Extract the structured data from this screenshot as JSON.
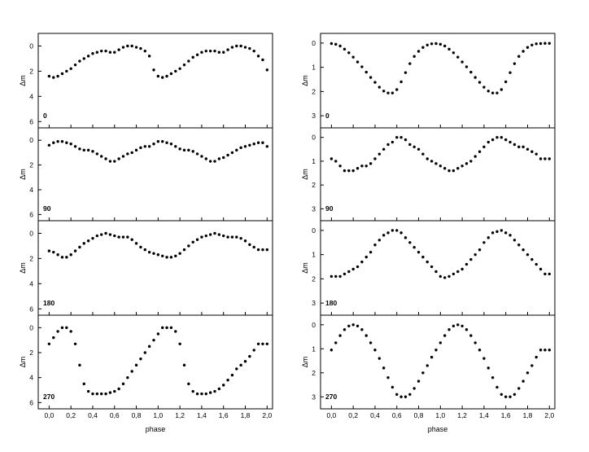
{
  "figure": {
    "xlabel": "phase",
    "ylabel": "Δm"
  },
  "chart_data": [
    {
      "type": "scatter",
      "column": "left",
      "label": "0",
      "xlim": [
        -0.1,
        2.05
      ],
      "ylim": [
        6.5,
        -1.0
      ],
      "yticks": [
        0,
        2,
        4,
        6
      ],
      "xticks": [
        0.0,
        0.2,
        0.4,
        0.6,
        0.8,
        1.0,
        1.2,
        1.4,
        1.6,
        1.8,
        2.0
      ],
      "xtick_labels": [
        "0,0",
        "0,2",
        "0,4",
        "0,6",
        "0,8",
        "1,0",
        "1,2",
        "1,4",
        "1,6",
        "1,8",
        "2,0"
      ],
      "x": [
        0.0,
        0.04,
        0.08,
        0.12,
        0.16,
        0.2,
        0.24,
        0.28,
        0.32,
        0.36,
        0.4,
        0.44,
        0.48,
        0.52,
        0.56,
        0.6,
        0.64,
        0.68,
        0.72,
        0.76,
        0.8,
        0.84,
        0.88,
        0.92,
        0.96,
        1.0,
        1.04,
        1.08,
        1.12,
        1.16,
        1.2,
        1.24,
        1.28,
        1.32,
        1.36,
        1.4,
        1.44,
        1.48,
        1.52,
        1.56,
        1.6,
        1.64,
        1.68,
        1.72,
        1.76,
        1.8,
        1.84,
        1.88,
        1.92,
        1.96,
        2.0
      ],
      "y": [
        2.4,
        2.5,
        2.4,
        2.2,
        2.0,
        1.8,
        1.5,
        1.2,
        1.0,
        0.8,
        0.6,
        0.5,
        0.4,
        0.4,
        0.5,
        0.5,
        0.3,
        0.1,
        0.0,
        0.0,
        0.1,
        0.2,
        0.4,
        0.8,
        1.9,
        2.4,
        2.5,
        2.4,
        2.2,
        2.0,
        1.8,
        1.5,
        1.2,
        0.9,
        0.7,
        0.5,
        0.4,
        0.4,
        0.4,
        0.5,
        0.5,
        0.3,
        0.1,
        0.0,
        0.0,
        0.1,
        0.2,
        0.4,
        0.8,
        1.1,
        1.9
      ]
    },
    {
      "type": "scatter",
      "column": "left",
      "label": "90",
      "xlim": [
        -0.1,
        2.05
      ],
      "ylim": [
        6.5,
        -1.0
      ],
      "yticks": [
        0,
        2,
        4,
        6
      ],
      "xticks": [
        0.0,
        0.2,
        0.4,
        0.6,
        0.8,
        1.0,
        1.2,
        1.4,
        1.6,
        1.8,
        2.0
      ],
      "xtick_labels": [
        "0,0",
        "0,2",
        "0,4",
        "0,6",
        "0,8",
        "1,0",
        "1,2",
        "1,4",
        "1,6",
        "1,8",
        "2,0"
      ],
      "x": [
        0.0,
        0.04,
        0.08,
        0.12,
        0.16,
        0.2,
        0.24,
        0.28,
        0.32,
        0.36,
        0.4,
        0.44,
        0.48,
        0.52,
        0.56,
        0.6,
        0.64,
        0.68,
        0.72,
        0.76,
        0.8,
        0.84,
        0.88,
        0.92,
        0.96,
        1.0,
        1.04,
        1.08,
        1.12,
        1.16,
        1.2,
        1.24,
        1.28,
        1.32,
        1.36,
        1.4,
        1.44,
        1.48,
        1.52,
        1.56,
        1.6,
        1.64,
        1.68,
        1.72,
        1.76,
        1.8,
        1.84,
        1.88,
        1.92,
        1.96,
        2.0
      ],
      "y": [
        0.4,
        0.2,
        0.1,
        0.1,
        0.2,
        0.3,
        0.5,
        0.7,
        0.8,
        0.8,
        0.9,
        1.1,
        1.3,
        1.5,
        1.7,
        1.7,
        1.5,
        1.3,
        1.1,
        1.0,
        0.8,
        0.6,
        0.5,
        0.5,
        0.3,
        0.1,
        0.1,
        0.2,
        0.3,
        0.5,
        0.7,
        0.8,
        0.8,
        0.9,
        1.1,
        1.3,
        1.5,
        1.7,
        1.7,
        1.5,
        1.4,
        1.2,
        1.0,
        0.8,
        0.6,
        0.5,
        0.4,
        0.3,
        0.2,
        0.2,
        0.5
      ]
    },
    {
      "type": "scatter",
      "column": "left",
      "label": "180",
      "xlim": [
        -0.1,
        2.05
      ],
      "ylim": [
        6.5,
        -1.0
      ],
      "yticks": [
        0,
        2,
        4,
        6
      ],
      "xticks": [
        0.0,
        0.2,
        0.4,
        0.6,
        0.8,
        1.0,
        1.2,
        1.4,
        1.6,
        1.8,
        2.0
      ],
      "xtick_labels": [
        "0,0",
        "0,2",
        "0,4",
        "0,6",
        "0,8",
        "1,0",
        "1,2",
        "1,4",
        "1,6",
        "1,8",
        "2,0"
      ],
      "x": [
        0.0,
        0.04,
        0.08,
        0.12,
        0.16,
        0.2,
        0.24,
        0.28,
        0.32,
        0.36,
        0.4,
        0.44,
        0.48,
        0.52,
        0.56,
        0.6,
        0.64,
        0.68,
        0.72,
        0.76,
        0.8,
        0.84,
        0.88,
        0.92,
        0.96,
        1.0,
        1.04,
        1.08,
        1.12,
        1.16,
        1.2,
        1.24,
        1.28,
        1.32,
        1.36,
        1.4,
        1.44,
        1.48,
        1.52,
        1.56,
        1.6,
        1.64,
        1.68,
        1.72,
        1.76,
        1.8,
        1.84,
        1.88,
        1.92,
        1.96,
        2.0
      ],
      "y": [
        1.4,
        1.5,
        1.7,
        1.9,
        1.9,
        1.7,
        1.4,
        1.1,
        0.8,
        0.6,
        0.4,
        0.2,
        0.1,
        0.0,
        0.1,
        0.2,
        0.3,
        0.3,
        0.3,
        0.5,
        0.8,
        1.1,
        1.3,
        1.5,
        1.6,
        1.7,
        1.8,
        1.9,
        1.9,
        1.8,
        1.6,
        1.3,
        1.0,
        0.7,
        0.5,
        0.3,
        0.2,
        0.1,
        0.0,
        0.1,
        0.2,
        0.3,
        0.3,
        0.3,
        0.4,
        0.6,
        0.9,
        1.1,
        1.3,
        1.3,
        1.3
      ]
    },
    {
      "type": "scatter",
      "column": "left",
      "label": "270",
      "xlim": [
        -0.1,
        2.05
      ],
      "ylim": [
        6.5,
        -1.0
      ],
      "yticks": [
        0,
        2,
        4,
        6
      ],
      "xticks": [
        0.0,
        0.2,
        0.4,
        0.6,
        0.8,
        1.0,
        1.2,
        1.4,
        1.6,
        1.8,
        2.0
      ],
      "xtick_labels": [
        "0,0",
        "0,2",
        "0,4",
        "0,6",
        "0,8",
        "1,0",
        "1,2",
        "1,4",
        "1,6",
        "1,8",
        "2,0"
      ],
      "x": [
        0.0,
        0.04,
        0.08,
        0.12,
        0.16,
        0.2,
        0.24,
        0.28,
        0.32,
        0.36,
        0.4,
        0.44,
        0.48,
        0.52,
        0.56,
        0.6,
        0.64,
        0.68,
        0.72,
        0.76,
        0.8,
        0.84,
        0.88,
        0.92,
        0.96,
        1.0,
        1.04,
        1.08,
        1.12,
        1.16,
        1.2,
        1.24,
        1.28,
        1.32,
        1.36,
        1.4,
        1.44,
        1.48,
        1.52,
        1.56,
        1.6,
        1.64,
        1.68,
        1.72,
        1.76,
        1.8,
        1.84,
        1.88,
        1.92,
        1.96,
        2.0
      ],
      "y": [
        1.3,
        0.8,
        0.3,
        0.0,
        0.0,
        0.3,
        1.3,
        3.0,
        4.5,
        5.1,
        5.3,
        5.3,
        5.3,
        5.3,
        5.2,
        5.1,
        4.9,
        4.5,
        4.0,
        3.5,
        3.0,
        2.5,
        2.0,
        1.5,
        1.0,
        0.5,
        0.0,
        0.0,
        0.0,
        0.3,
        1.3,
        3.0,
        4.5,
        5.1,
        5.3,
        5.3,
        5.3,
        5.2,
        5.1,
        4.9,
        4.6,
        4.2,
        3.8,
        3.3,
        3.0,
        2.7,
        2.3,
        1.8,
        1.3,
        1.3,
        1.3
      ]
    },
    {
      "type": "scatter",
      "column": "right",
      "label": "0",
      "xlim": [
        -0.1,
        2.05
      ],
      "ylim": [
        3.5,
        -0.4
      ],
      "yticks": [
        0,
        1,
        2,
        3
      ],
      "xticks": [
        0.0,
        0.2,
        0.4,
        0.6,
        0.8,
        1.0,
        1.2,
        1.4,
        1.6,
        1.8,
        2.0
      ],
      "xtick_labels": [
        "0,0",
        "0,2",
        "0,4",
        "0,6",
        "0,8",
        "1,0",
        "1,2",
        "1,4",
        "1,6",
        "1,8",
        "2,0"
      ],
      "x": [
        0.0,
        0.04,
        0.08,
        0.12,
        0.16,
        0.2,
        0.24,
        0.28,
        0.32,
        0.36,
        0.4,
        0.44,
        0.48,
        0.52,
        0.56,
        0.6,
        0.64,
        0.68,
        0.72,
        0.76,
        0.8,
        0.84,
        0.88,
        0.92,
        0.96,
        1.0,
        1.04,
        1.08,
        1.12,
        1.16,
        1.2,
        1.24,
        1.28,
        1.32,
        1.36,
        1.4,
        1.44,
        1.48,
        1.52,
        1.56,
        1.6,
        1.64,
        1.68,
        1.72,
        1.76,
        1.8,
        1.84,
        1.88,
        1.92,
        1.96,
        2.0
      ],
      "y": [
        0.02,
        0.05,
        0.12,
        0.25,
        0.4,
        0.58,
        0.78,
        0.98,
        1.2,
        1.42,
        1.62,
        1.82,
        1.98,
        2.06,
        2.06,
        1.92,
        1.6,
        1.22,
        0.85,
        0.55,
        0.34,
        0.18,
        0.08,
        0.03,
        0.02,
        0.05,
        0.12,
        0.25,
        0.4,
        0.58,
        0.78,
        0.98,
        1.2,
        1.42,
        1.62,
        1.82,
        1.98,
        2.06,
        2.06,
        1.92,
        1.6,
        1.22,
        0.85,
        0.55,
        0.34,
        0.18,
        0.08,
        0.03,
        0.02,
        0.01,
        0.01
      ]
    },
    {
      "type": "scatter",
      "column": "right",
      "label": "90",
      "xlim": [
        -0.1,
        2.05
      ],
      "ylim": [
        3.5,
        -0.4
      ],
      "yticks": [
        0,
        1,
        2,
        3
      ],
      "xticks": [
        0.0,
        0.2,
        0.4,
        0.6,
        0.8,
        1.0,
        1.2,
        1.4,
        1.6,
        1.8,
        2.0
      ],
      "xtick_labels": [
        "0,0",
        "0,2",
        "0,4",
        "0,6",
        "0,8",
        "1,0",
        "1,2",
        "1,4",
        "1,6",
        "1,8",
        "2,0"
      ],
      "x": [
        0.0,
        0.04,
        0.08,
        0.12,
        0.16,
        0.2,
        0.24,
        0.28,
        0.32,
        0.36,
        0.4,
        0.44,
        0.48,
        0.52,
        0.56,
        0.6,
        0.64,
        0.68,
        0.72,
        0.76,
        0.8,
        0.84,
        0.88,
        0.92,
        0.96,
        1.0,
        1.04,
        1.08,
        1.12,
        1.16,
        1.2,
        1.24,
        1.28,
        1.32,
        1.36,
        1.4,
        1.44,
        1.48,
        1.52,
        1.56,
        1.6,
        1.64,
        1.68,
        1.72,
        1.76,
        1.8,
        1.84,
        1.88,
        1.92,
        1.96,
        2.0
      ],
      "y": [
        0.9,
        1.0,
        1.2,
        1.4,
        1.4,
        1.4,
        1.3,
        1.2,
        1.2,
        1.1,
        0.9,
        0.7,
        0.5,
        0.3,
        0.2,
        0.0,
        0.0,
        0.1,
        0.3,
        0.4,
        0.5,
        0.7,
        0.9,
        1.0,
        1.1,
        1.2,
        1.3,
        1.4,
        1.4,
        1.3,
        1.2,
        1.1,
        1.0,
        0.8,
        0.6,
        0.4,
        0.2,
        0.1,
        0.0,
        0.0,
        0.1,
        0.2,
        0.3,
        0.4,
        0.4,
        0.5,
        0.6,
        0.7,
        0.9,
        0.9,
        0.9
      ]
    },
    {
      "type": "scatter",
      "column": "right",
      "label": "180",
      "xlim": [
        -0.1,
        2.05
      ],
      "ylim": [
        3.5,
        -0.4
      ],
      "yticks": [
        0,
        1,
        2,
        3
      ],
      "xticks": [
        0.0,
        0.2,
        0.4,
        0.6,
        0.8,
        1.0,
        1.2,
        1.4,
        1.6,
        1.8,
        2.0
      ],
      "xtick_labels": [
        "0,0",
        "0,2",
        "0,4",
        "0,6",
        "0,8",
        "1,0",
        "1,2",
        "1,4",
        "1,6",
        "1,8",
        "2,0"
      ],
      "x": [
        0.0,
        0.04,
        0.08,
        0.12,
        0.16,
        0.2,
        0.24,
        0.28,
        0.32,
        0.36,
        0.4,
        0.44,
        0.48,
        0.52,
        0.56,
        0.6,
        0.64,
        0.68,
        0.72,
        0.76,
        0.8,
        0.84,
        0.88,
        0.92,
        0.96,
        1.0,
        1.04,
        1.08,
        1.12,
        1.16,
        1.2,
        1.24,
        1.28,
        1.32,
        1.36,
        1.4,
        1.44,
        1.48,
        1.52,
        1.56,
        1.6,
        1.64,
        1.68,
        1.72,
        1.76,
        1.8,
        1.84,
        1.88,
        1.92,
        1.96,
        2.0
      ],
      "y": [
        1.9,
        1.9,
        1.9,
        1.8,
        1.7,
        1.6,
        1.5,
        1.3,
        1.1,
        0.9,
        0.6,
        0.4,
        0.2,
        0.1,
        0.0,
        0.0,
        0.1,
        0.3,
        0.5,
        0.7,
        0.9,
        1.1,
        1.3,
        1.5,
        1.7,
        1.9,
        1.95,
        1.9,
        1.8,
        1.7,
        1.6,
        1.4,
        1.2,
        1.0,
        0.8,
        0.5,
        0.3,
        0.1,
        0.05,
        0.0,
        0.1,
        0.2,
        0.4,
        0.6,
        0.8,
        1.0,
        1.2,
        1.4,
        1.6,
        1.8,
        1.8
      ]
    },
    {
      "type": "scatter",
      "column": "right",
      "label": "270",
      "xlim": [
        -0.1,
        2.05
      ],
      "ylim": [
        3.5,
        -0.4
      ],
      "yticks": [
        0,
        1,
        2,
        3
      ],
      "xticks": [
        0.0,
        0.2,
        0.4,
        0.6,
        0.8,
        1.0,
        1.2,
        1.4,
        1.6,
        1.8,
        2.0
      ],
      "xtick_labels": [
        "0,0",
        "0,2",
        "0,4",
        "0,6",
        "0,8",
        "1,0",
        "1,2",
        "1,4",
        "1,6",
        "1,8",
        "2,0"
      ],
      "x": [
        0.0,
        0.04,
        0.08,
        0.12,
        0.16,
        0.2,
        0.24,
        0.28,
        0.32,
        0.36,
        0.4,
        0.44,
        0.48,
        0.52,
        0.56,
        0.6,
        0.64,
        0.68,
        0.72,
        0.76,
        0.8,
        0.84,
        0.88,
        0.92,
        0.96,
        1.0,
        1.04,
        1.08,
        1.12,
        1.16,
        1.2,
        1.24,
        1.28,
        1.32,
        1.36,
        1.4,
        1.44,
        1.48,
        1.52,
        1.56,
        1.6,
        1.64,
        1.68,
        1.72,
        1.76,
        1.8,
        1.84,
        1.88,
        1.92,
        1.96,
        2.0
      ],
      "y": [
        1.05,
        0.75,
        0.45,
        0.2,
        0.05,
        0.0,
        0.05,
        0.2,
        0.45,
        0.75,
        1.05,
        1.4,
        1.8,
        2.2,
        2.6,
        2.9,
        3.0,
        3.0,
        2.9,
        2.65,
        2.35,
        2.0,
        1.7,
        1.35,
        1.05,
        0.75,
        0.45,
        0.2,
        0.05,
        0.0,
        0.05,
        0.2,
        0.45,
        0.75,
        1.05,
        1.4,
        1.8,
        2.2,
        2.6,
        2.9,
        3.0,
        3.0,
        2.9,
        2.65,
        2.35,
        2.0,
        1.7,
        1.35,
        1.05,
        1.05,
        1.05
      ]
    }
  ]
}
